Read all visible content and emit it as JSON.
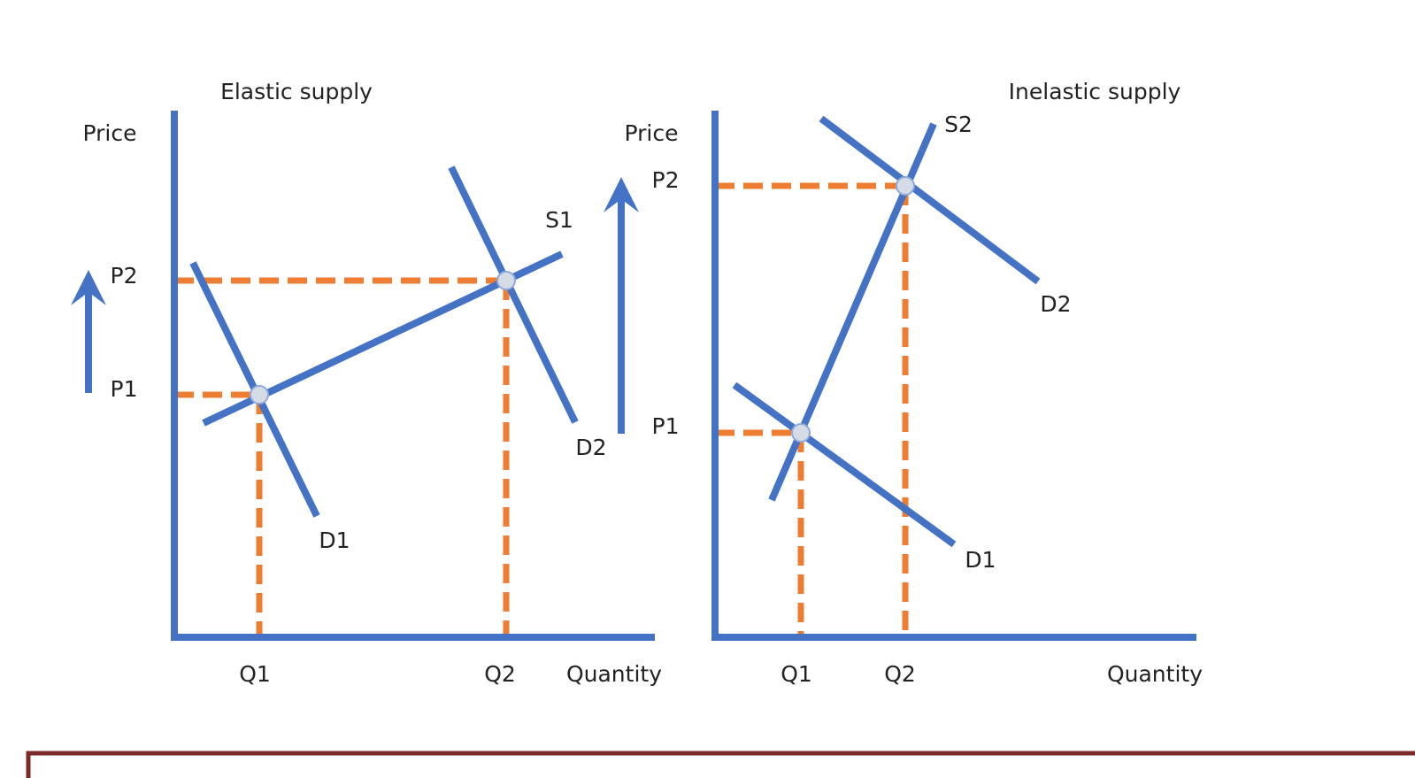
{
  "panels": [
    {
      "title": "Elastic supply",
      "y_axis_label": "Price",
      "x_axis_label": "Quantity",
      "price_labels": [
        "P2",
        "P1"
      ],
      "quantity_labels": [
        "Q1",
        "Q2"
      ],
      "curve_labels": [
        "S1",
        "D1",
        "D2"
      ]
    },
    {
      "title": "Inelastic supply",
      "y_axis_label": "Price",
      "x_axis_label": "Quantity",
      "price_labels": [
        "P2",
        "P1"
      ],
      "quantity_labels": [
        "Q1",
        "Q2"
      ],
      "curve_labels": [
        "S2",
        "D1",
        "D2"
      ]
    }
  ]
}
